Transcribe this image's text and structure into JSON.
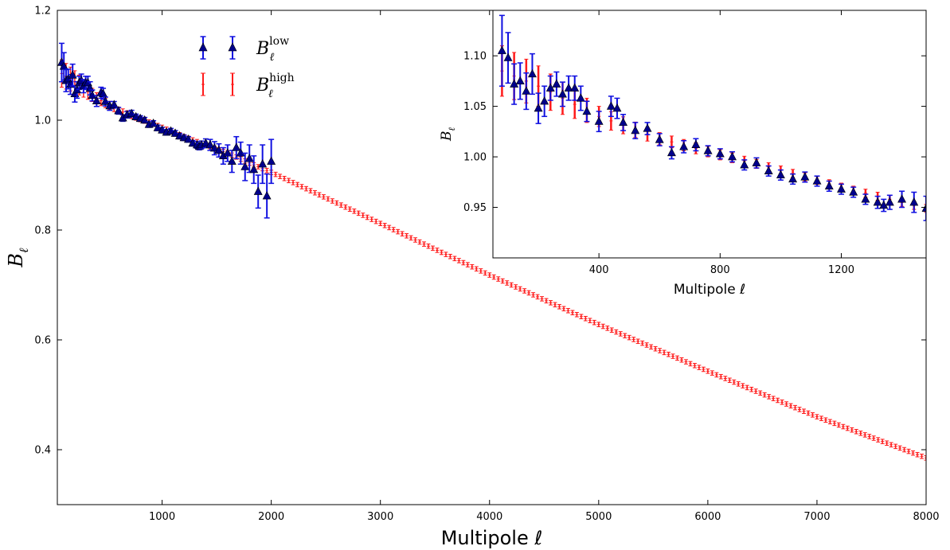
{
  "colors": {
    "low": "#1010e0",
    "low_marker": "#00008b",
    "high": "#ff1a1a"
  },
  "chart_data": [
    {
      "type": "scatter",
      "subtype": "errorbar",
      "xlabel": "Multipole ℓ",
      "ylabel": "B_ℓ",
      "ylabel_display": "B",
      "ylabel_sub": "ℓ",
      "xlim": [
        40,
        8000
      ],
      "ylim": [
        0.3,
        1.2
      ],
      "xticks": [
        1000,
        2000,
        3000,
        4000,
        5000,
        6000,
        7000,
        8000
      ],
      "yticks": [
        0.4,
        0.6,
        0.8,
        1.0,
        1.2
      ],
      "ytick_labels": [
        "0.4",
        "0.6",
        "0.8",
        "1.0",
        "1.2"
      ],
      "legend": {
        "position": "top-left",
        "entries": [
          {
            "base": "B",
            "sub": "ℓ",
            "sup": "low",
            "series": "low"
          },
          {
            "base": "B",
            "sub": "ℓ",
            "sup": "high",
            "series": "high"
          }
        ]
      },
      "series": [
        {
          "id": "low",
          "marker": "triangle",
          "color": "blue",
          "x": [
            80,
            100,
            120,
            140,
            160,
            180,
            200,
            220,
            240,
            260,
            280,
            300,
            320,
            340,
            360,
            400,
            440,
            460,
            480,
            520,
            560,
            600,
            640,
            680,
            720,
            760,
            800,
            840,
            880,
            920,
            960,
            1000,
            1040,
            1080,
            1120,
            1160,
            1200,
            1240,
            1280,
            1320,
            1340,
            1360,
            1400,
            1440,
            1480,
            1520,
            1560,
            1600,
            1640,
            1680,
            1720,
            1760,
            1800,
            1840,
            1880,
            1920,
            1960,
            2000
          ],
          "y": [
            1.105,
            1.098,
            1.072,
            1.075,
            1.065,
            1.082,
            1.048,
            1.055,
            1.068,
            1.072,
            1.062,
            1.068,
            1.068,
            1.058,
            1.045,
            1.035,
            1.05,
            1.048,
            1.034,
            1.026,
            1.028,
            1.017,
            1.004,
            1.01,
            1.012,
            1.006,
            1.003,
            1.0,
            0.992,
            0.994,
            0.986,
            0.982,
            0.978,
            0.98,
            0.976,
            0.971,
            0.968,
            0.965,
            0.958,
            0.955,
            0.952,
            0.955,
            0.958,
            0.955,
            0.949,
            0.945,
            0.935,
            0.94,
            0.925,
            0.95,
            0.94,
            0.915,
            0.93,
            0.91,
            0.87,
            0.92,
            0.862,
            0.925
          ],
          "err": [
            0.035,
            0.025,
            0.02,
            0.018,
            0.018,
            0.02,
            0.015,
            0.015,
            0.012,
            0.012,
            0.012,
            0.012,
            0.012,
            0.012,
            0.01,
            0.01,
            0.01,
            0.01,
            0.008,
            0.008,
            0.006,
            0.006,
            0.006,
            0.006,
            0.006,
            0.005,
            0.005,
            0.005,
            0.005,
            0.005,
            0.005,
            0.005,
            0.005,
            0.005,
            0.005,
            0.005,
            0.005,
            0.005,
            0.005,
            0.006,
            0.006,
            0.007,
            0.008,
            0.01,
            0.012,
            0.012,
            0.015,
            0.015,
            0.02,
            0.02,
            0.02,
            0.025,
            0.025,
            0.025,
            0.03,
            0.035,
            0.04,
            0.04
          ]
        },
        {
          "id": "high",
          "marker": "plus",
          "color": "red",
          "x_start": 80,
          "x_end": 8000,
          "x_step": 40,
          "y_nodes_x": [
            80,
            200,
            400,
            600,
            800,
            1000,
            1200,
            1400,
            1600,
            1800,
            2000,
            3000,
            4000,
            5000,
            6000,
            7000,
            8000
          ],
          "y_nodes_y": [
            1.085,
            1.07,
            1.04,
            1.018,
            1.002,
            0.987,
            0.97,
            0.955,
            0.94,
            0.922,
            0.905,
            0.812,
            0.718,
            0.628,
            0.543,
            0.46,
            0.385
          ],
          "err_nodes_y": [
            0.025,
            0.02,
            0.01,
            0.006,
            0.005,
            0.004,
            0.004,
            0.004,
            0.004,
            0.004,
            0.004,
            0.004,
            0.004,
            0.004,
            0.004,
            0.004,
            0.004
          ]
        }
      ]
    },
    {
      "type": "scatter",
      "subtype": "errorbar-inset",
      "xlabel": "Multipole ℓ",
      "ylabel": "B_ℓ",
      "ylabel_display": "B",
      "ylabel_sub": "ℓ",
      "xlim": [
        50,
        1480
      ],
      "ylim": [
        0.9,
        1.145
      ],
      "xticks": [
        400,
        800,
        1200
      ],
      "yticks": [
        0.95,
        1.0,
        1.05,
        1.1
      ],
      "ytick_labels": [
        "0.95",
        "1.00",
        "1.05",
        "1.10"
      ],
      "series_ref": [
        "low",
        "high"
      ],
      "x_max": 1480
    }
  ]
}
